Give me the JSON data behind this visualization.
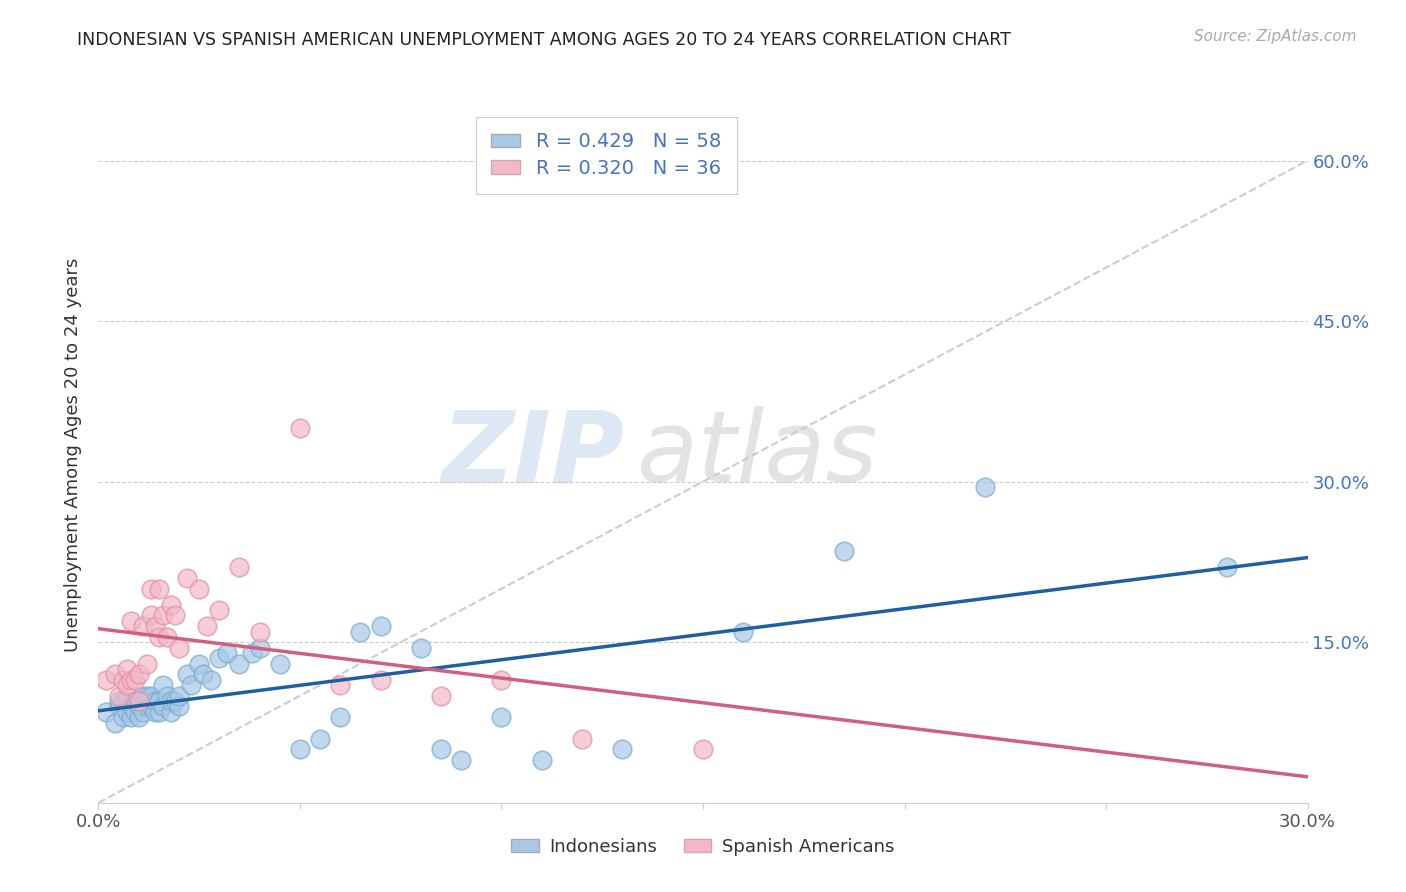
{
  "title": "INDONESIAN VS SPANISH AMERICAN UNEMPLOYMENT AMONG AGES 20 TO 24 YEARS CORRELATION CHART",
  "source": "Source: ZipAtlas.com",
  "ylabel": "Unemployment Among Ages 20 to 24 years",
  "xlim": [
    0.0,
    0.3
  ],
  "ylim": [
    0.0,
    0.65
  ],
  "ytick_labels": [
    "15.0%",
    "30.0%",
    "45.0%",
    "60.0%"
  ],
  "ytick_values": [
    0.15,
    0.3,
    0.45,
    0.6
  ],
  "blue_R": 0.429,
  "blue_N": 58,
  "pink_R": 0.32,
  "pink_N": 36,
  "blue_color": "#a8c8e8",
  "pink_color": "#f4b8c8",
  "blue_edge_color": "#7aaed0",
  "pink_edge_color": "#e090a8",
  "blue_line_color": "#2060a0",
  "pink_line_color": "#d06080",
  "ref_line_color": "#cccccc",
  "legend_label_blue": "Indonesians",
  "legend_label_pink": "Spanish Americans",
  "watermark_zip": "ZIP",
  "watermark_atlas": "atlas",
  "blue_x": [
    0.002,
    0.004,
    0.005,
    0.005,
    0.006,
    0.006,
    0.007,
    0.007,
    0.008,
    0.008,
    0.009,
    0.009,
    0.01,
    0.01,
    0.011,
    0.011,
    0.012,
    0.012,
    0.013,
    0.013,
    0.014,
    0.014,
    0.015,
    0.015,
    0.016,
    0.016,
    0.017,
    0.018,
    0.018,
    0.019,
    0.02,
    0.02,
    0.022,
    0.023,
    0.025,
    0.026,
    0.028,
    0.03,
    0.032,
    0.035,
    0.038,
    0.04,
    0.045,
    0.05,
    0.055,
    0.06,
    0.065,
    0.07,
    0.08,
    0.085,
    0.09,
    0.1,
    0.11,
    0.13,
    0.16,
    0.185,
    0.22,
    0.28
  ],
  "blue_y": [
    0.085,
    0.075,
    0.09,
    0.095,
    0.08,
    0.095,
    0.085,
    0.095,
    0.08,
    0.09,
    0.085,
    0.095,
    0.08,
    0.09,
    0.085,
    0.1,
    0.09,
    0.1,
    0.09,
    0.1,
    0.085,
    0.095,
    0.085,
    0.095,
    0.09,
    0.11,
    0.1,
    0.085,
    0.095,
    0.095,
    0.09,
    0.1,
    0.12,
    0.11,
    0.13,
    0.12,
    0.115,
    0.135,
    0.14,
    0.13,
    0.14,
    0.145,
    0.13,
    0.05,
    0.06,
    0.08,
    0.16,
    0.165,
    0.145,
    0.05,
    0.04,
    0.08,
    0.04,
    0.05,
    0.16,
    0.235,
    0.295,
    0.22
  ],
  "pink_x": [
    0.002,
    0.004,
    0.005,
    0.006,
    0.007,
    0.007,
    0.008,
    0.008,
    0.009,
    0.01,
    0.01,
    0.011,
    0.012,
    0.013,
    0.013,
    0.014,
    0.015,
    0.015,
    0.016,
    0.017,
    0.018,
    0.019,
    0.02,
    0.022,
    0.025,
    0.027,
    0.03,
    0.035,
    0.04,
    0.05,
    0.06,
    0.07,
    0.085,
    0.1,
    0.12,
    0.15
  ],
  "pink_y": [
    0.115,
    0.12,
    0.1,
    0.115,
    0.11,
    0.125,
    0.115,
    0.17,
    0.115,
    0.12,
    0.095,
    0.165,
    0.13,
    0.175,
    0.2,
    0.165,
    0.155,
    0.2,
    0.175,
    0.155,
    0.185,
    0.175,
    0.145,
    0.21,
    0.2,
    0.165,
    0.18,
    0.22,
    0.16,
    0.35,
    0.11,
    0.115,
    0.1,
    0.115,
    0.06,
    0.05
  ]
}
